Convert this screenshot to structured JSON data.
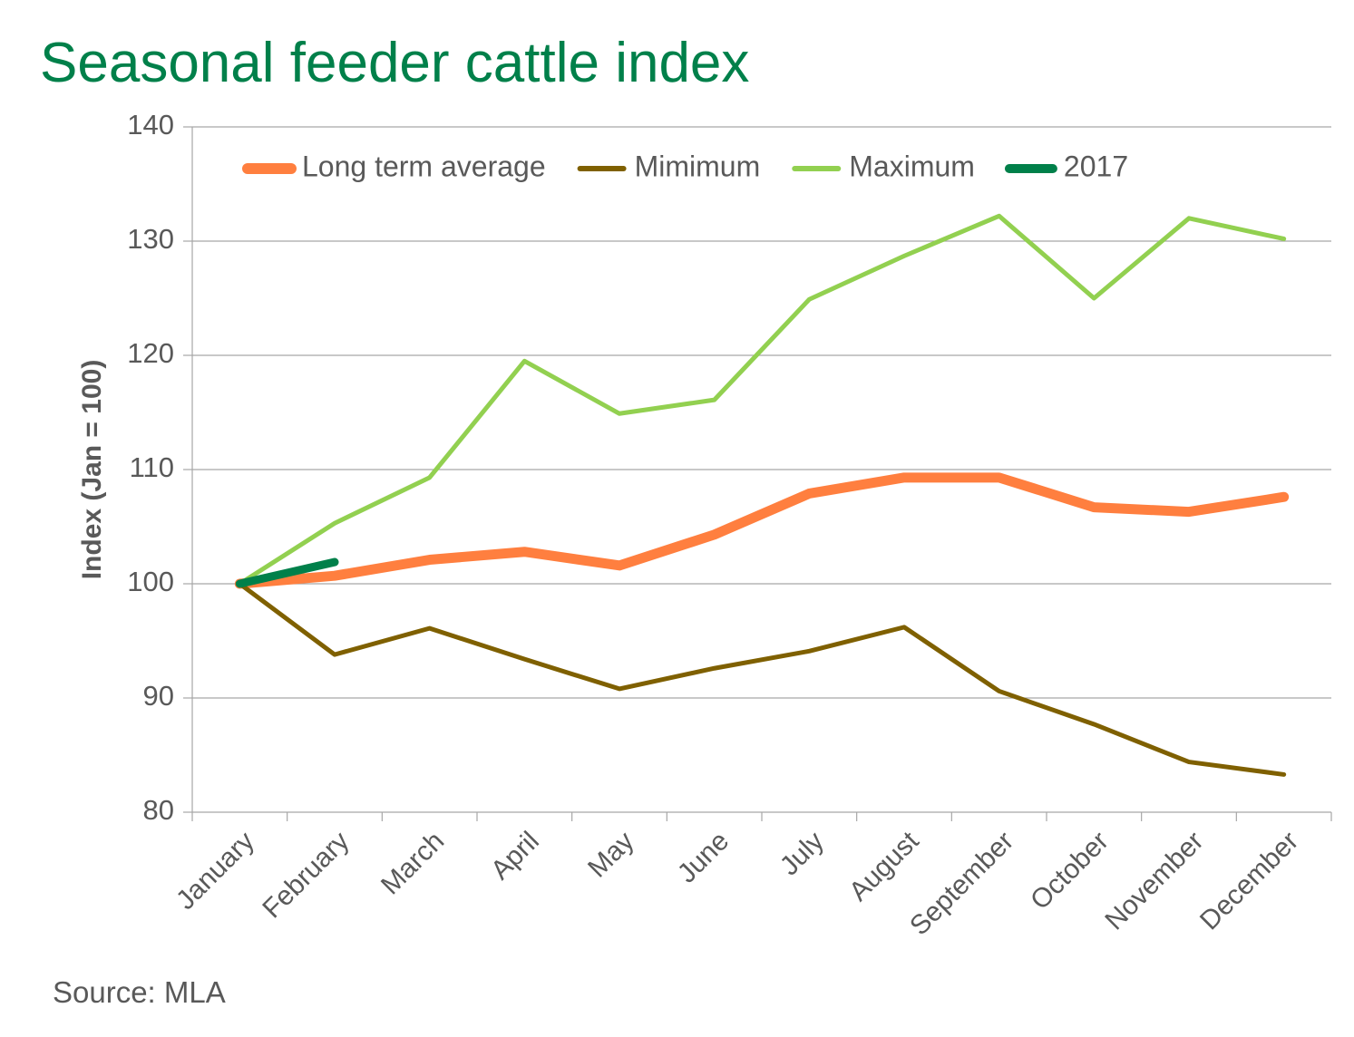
{
  "chart_data": {
    "type": "line",
    "title": "Seasonal feeder cattle index",
    "y_label": "Index (Jan = 100)",
    "source": "Source: MLA",
    "categories": [
      "January",
      "February",
      "March",
      "April",
      "May",
      "June",
      "July",
      "August",
      "September",
      "October",
      "November",
      "December"
    ],
    "series": [
      {
        "name": "Long term average",
        "color": "#ff7f3f",
        "width": 11,
        "values": [
          100,
          100.7,
          102.1,
          102.8,
          101.6,
          104.3,
          107.9,
          109.3,
          109.3,
          106.7,
          106.3,
          107.6
        ]
      },
      {
        "name": "Mimimum",
        "color": "#7f6000",
        "width": 5,
        "values": [
          100,
          93.8,
          96.1,
          93.4,
          90.8,
          92.6,
          94.1,
          96.2,
          90.6,
          87.7,
          84.4,
          83.3
        ]
      },
      {
        "name": "Maximum",
        "color": "#92d050",
        "width": 5,
        "values": [
          100,
          105.3,
          109.3,
          119.5,
          114.9,
          116.1,
          124.9,
          128.7,
          132.2,
          125,
          132,
          130.2
        ]
      },
      {
        "name": "2017",
        "color": "#00804a",
        "width": 9,
        "values": [
          100,
          101.9,
          null,
          null,
          null,
          null,
          null,
          null,
          null,
          null,
          null,
          null
        ]
      }
    ],
    "ylim": [
      80,
      140
    ],
    "yticks": [
      80,
      90,
      100,
      110,
      120,
      130,
      140
    ],
    "grid": true,
    "legend": "top"
  }
}
